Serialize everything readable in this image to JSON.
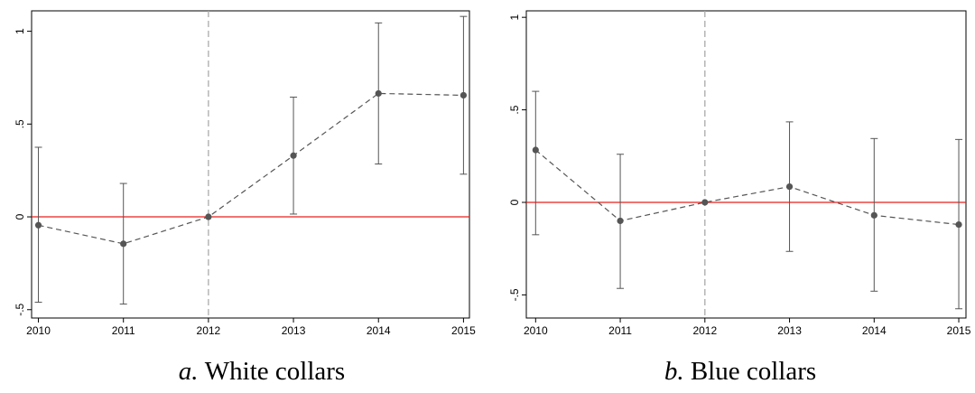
{
  "chart_data": [
    {
      "type": "errorbar",
      "panel": "a.",
      "caption": "White collars",
      "x": [
        2010,
        2011,
        2012,
        2013,
        2014,
        2015
      ],
      "values": [
        -0.045,
        -0.145,
        0,
        0.33,
        0.665,
        0.655
      ],
      "lower": [
        -0.46,
        -0.47,
        null,
        0.015,
        0.285,
        0.23
      ],
      "upper": [
        0.375,
        0.18,
        null,
        0.645,
        1.045,
        1.08
      ],
      "color": "#555555",
      "hline": 0,
      "hline_color": "#e8201c",
      "vline": 2012,
      "vline_color": "#aaaaaa",
      "xlim": [
        2009.92,
        2015.07
      ],
      "xticks": [
        2010,
        2011,
        2012,
        2013,
        2014,
        2015
      ],
      "ylim": [
        -0.545,
        1.11
      ],
      "yticks": [
        {
          "value": -0.5,
          "label": "-.5"
        },
        0,
        {
          "value": 0.5,
          "label": ".5"
        },
        1
      ]
    },
    {
      "type": "errorbar",
      "panel": "b.",
      "caption": "Blue collars",
      "x": [
        2010,
        2011,
        2012,
        2013,
        2014,
        2015
      ],
      "values": [
        0.283,
        -0.1,
        0,
        0.085,
        -0.07,
        -0.12
      ],
      "lower": [
        -0.175,
        -0.465,
        null,
        -0.265,
        -0.48,
        -0.575
      ],
      "upper": [
        0.6,
        0.26,
        null,
        0.435,
        0.345,
        0.34
      ],
      "color": "#555555",
      "hline": 0,
      "hline_color": "#e8201c",
      "vline": 2012,
      "vline_color": "#aaaaaa",
      "xlim": [
        2009.89,
        2015.085
      ],
      "xticks": [
        2010,
        2011,
        2012,
        2013,
        2014,
        2015
      ],
      "ylim": [
        -0.625,
        1.035
      ],
      "yticks": [
        {
          "value": -0.5,
          "label": "-.5"
        },
        0,
        {
          "value": 0.5,
          "label": ".5"
        },
        1
      ]
    }
  ]
}
